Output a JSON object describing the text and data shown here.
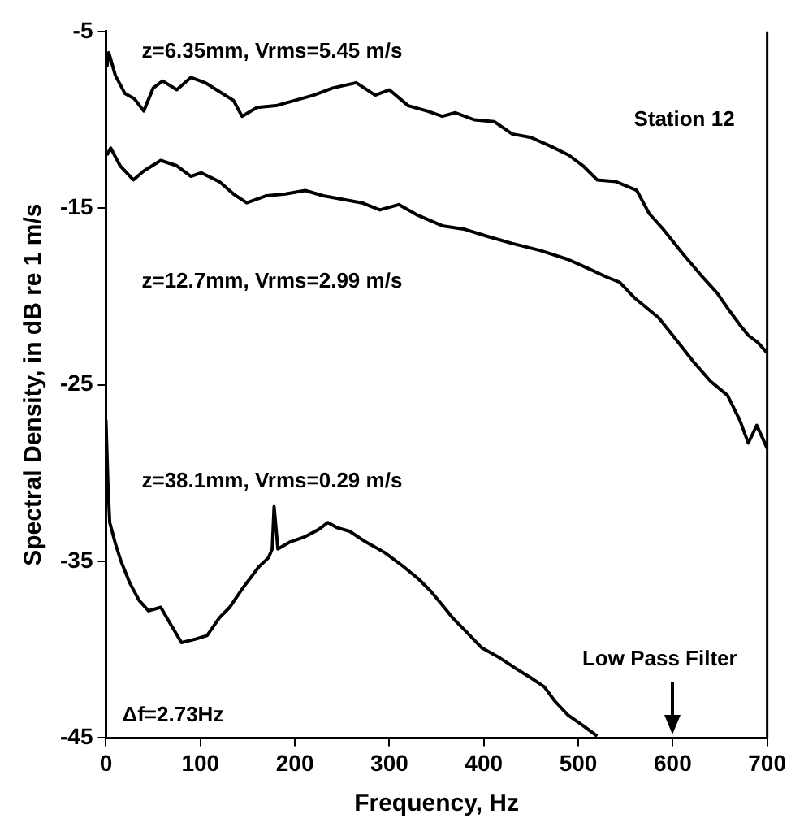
{
  "chart_data": {
    "type": "line",
    "xlabel": "Frequency, Hz",
    "ylabel": "Spectral Density, in dB re 1 m/s",
    "xlim": [
      0,
      700
    ],
    "xticks": [
      0,
      100,
      200,
      300,
      400,
      500,
      600,
      700
    ],
    "ylim": [
      -45,
      -5
    ],
    "yticks": [
      -45,
      -35,
      -25,
      -15,
      -5
    ],
    "grid": false,
    "legend": false,
    "marker": "none",
    "line_style": "solid",
    "annotations": [
      "Station 12",
      "Δf=2.73Hz"
    ],
    "ref_lines": [
      {
        "axis": "x",
        "value": 600,
        "label": "Low Pass Filter"
      }
    ],
    "series": [
      {
        "name": "z=6.35mm, Vrms=5.45 m/s",
        "color": "#000000",
        "x": [
          1,
          3,
          10,
          20,
          30,
          40,
          50,
          60,
          75,
          90,
          105,
          120,
          135,
          144,
          160,
          180,
          200,
          220,
          240,
          265,
          285,
          300,
          320,
          340,
          356,
          370,
          390,
          411,
          430,
          450,
          471,
          490,
          505,
          520,
          540,
          562,
          575,
          590,
          611,
          630,
          647,
          660,
          671,
          680,
          690,
          700
        ],
        "values": [
          -7,
          -6.2,
          -7.5,
          -8.5,
          -8.8,
          -9.5,
          -8.2,
          -7.8,
          -8.3,
          -7.6,
          -7.9,
          -8.4,
          -8.9,
          -9.8,
          -9.3,
          -9.2,
          -8.9,
          -8.6,
          -8.2,
          -7.9,
          -8.6,
          -8.3,
          -9.2,
          -9.5,
          -9.8,
          -9.6,
          -10,
          -10.1,
          -10.8,
          -11,
          -11.5,
          -12,
          -12.6,
          -13.4,
          -13.5,
          -14,
          -15.3,
          -16.2,
          -17.6,
          -18.8,
          -19.8,
          -20.8,
          -21.6,
          -22.2,
          -22.6,
          -23.2
        ]
      },
      {
        "name": "z=12.7mm, Vrms=2.99 m/s",
        "color": "#000000",
        "x": [
          1,
          5,
          15,
          29,
          40,
          58,
          75,
          90,
          101,
          120,
          135,
          149,
          170,
          190,
          211,
          230,
          250,
          271,
          290,
          310,
          330,
          356,
          380,
          404,
          430,
          460,
          489,
          510,
          530,
          544,
          560,
          585,
          600,
          622,
          640,
          658,
          671,
          680,
          689,
          700
        ],
        "values": [
          -12,
          -11.6,
          -12.6,
          -13.4,
          -12.9,
          -12.3,
          -12.6,
          -13.2,
          -13,
          -13.5,
          -14.2,
          -14.7,
          -14.3,
          -14.2,
          -14,
          -14.3,
          -14.5,
          -14.7,
          -15.1,
          -14.8,
          -15.4,
          -16,
          -16.2,
          -16.6,
          -17,
          -17.4,
          -17.9,
          -18.4,
          -18.9,
          -19.2,
          -20.1,
          -21.2,
          -22.2,
          -23.7,
          -24.8,
          -25.6,
          -27,
          -28.3,
          -27.3,
          -28.6
        ]
      },
      {
        "name": "z=38.1mm, Vrms=0.29 m/s",
        "color": "#000000",
        "x": [
          0,
          2,
          4,
          10,
          16,
          25,
          35,
          45,
          58,
          70,
          80,
          95,
          107,
          120,
          131,
          145,
          162,
          172,
          176,
          178,
          182,
          195,
          211,
          225,
          235,
          245,
          258,
          275,
          295,
          315,
          331,
          344,
          358,
          367,
          380,
          398,
          415,
          435,
          450,
          464,
          475,
          489,
          505,
          520
        ],
        "values": [
          -27,
          -30.5,
          -32.8,
          -34,
          -35,
          -36.2,
          -37.2,
          -37.8,
          -37.6,
          -38.7,
          -39.6,
          -39.4,
          -39.2,
          -38.2,
          -37.6,
          -36.5,
          -35.3,
          -34.8,
          -34.3,
          -31.9,
          -34.3,
          -33.9,
          -33.6,
          -33.2,
          -32.8,
          -33.1,
          -33.3,
          -33.9,
          -34.5,
          -35.3,
          -36,
          -36.7,
          -37.6,
          -38.2,
          -38.9,
          -39.9,
          -40.4,
          -41.1,
          -41.6,
          -42.1,
          -42.9,
          -43.7,
          -44.3,
          -44.9
        ]
      }
    ]
  }
}
